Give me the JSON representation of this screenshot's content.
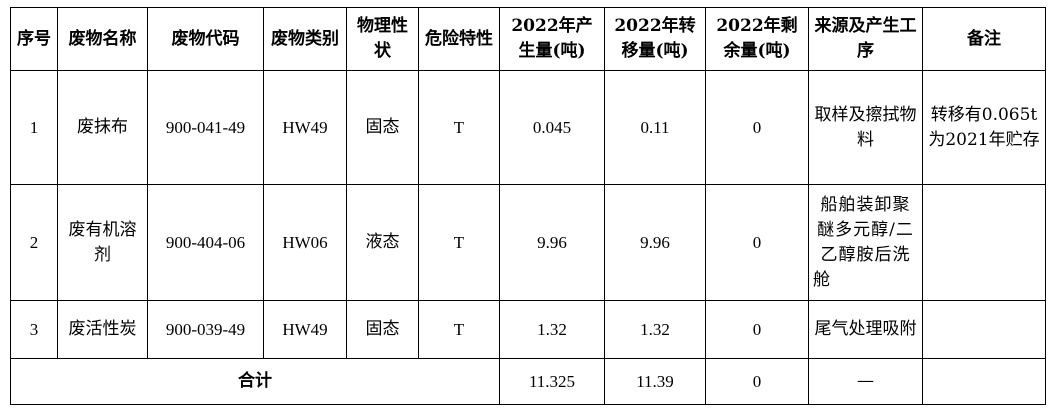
{
  "table": {
    "headers": {
      "seq": "序号",
      "name": "废物名称",
      "code": "废物代码",
      "category": "废物类别",
      "state": "物理性状",
      "hazard": "危险特性",
      "produced": "2022年产生量(吨)",
      "transferred": "2022年转移量(吨)",
      "remaining": "2022年剩余量(吨)",
      "source": "来源及产生工序",
      "remark": "备注"
    },
    "rows": [
      {
        "seq": "1",
        "name": "废抹布",
        "code": "900-041-49",
        "category": "HW49",
        "state": "固态",
        "hazard": "T",
        "produced": "0.045",
        "transferred": "0.11",
        "remaining": "0",
        "source": "取样及擦拭物料",
        "remark": "转移有0.065t为2021年贮存"
      },
      {
        "seq": "2",
        "name": "废有机溶剂",
        "code": "900-404-06",
        "category": "HW06",
        "state": "液态",
        "hazard": "T",
        "produced": "9.96",
        "transferred": "9.96",
        "remaining": "0",
        "source": "船舶装卸聚醚多元醇/二乙醇胺后洗舱",
        "remark": ""
      },
      {
        "seq": "3",
        "name": "废活性炭",
        "code": "900-039-49",
        "category": "HW49",
        "state": "固态",
        "hazard": "T",
        "produced": "1.32",
        "transferred": "1.32",
        "remaining": "0",
        "source": "尾气处理吸附",
        "remark": ""
      }
    ],
    "total": {
      "label": "合计",
      "produced": "11.325",
      "transferred": "11.39",
      "remaining": "0",
      "source": "—",
      "remark": ""
    }
  }
}
